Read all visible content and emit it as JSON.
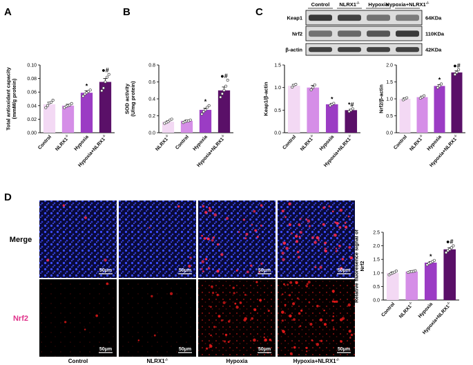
{
  "panel_labels": {
    "a": "A",
    "b": "B",
    "c": "C",
    "d": "D"
  },
  "sig_symbols": {
    "vs_control": "*",
    "vs_nlrx1": "●",
    "vs_hypoxia": "#"
  },
  "colors": {
    "control": "#f3d9f4",
    "nlrx1": "#d58ee7",
    "hypoxia": "#9b3cc4",
    "combo": "#5a1068",
    "nrf2_text": "#e0308a"
  },
  "blot": {
    "lanes": [
      "Control",
      "NLRX1-/-",
      "Hypoxia",
      "Hypoxia+NLRX1-/-"
    ],
    "rows": [
      {
        "name": "Keap1",
        "size": "64KDa"
      },
      {
        "name": "Nrf2",
        "size": "110KDa"
      },
      {
        "name": "β-actin",
        "size": "42KDa"
      }
    ]
  },
  "microscopy": {
    "row_labels": [
      "Merge",
      "Nrf2"
    ],
    "col_labels": [
      "Control",
      "NLRX1-/-",
      "Hypoxia",
      "Hypoxia+NLRX1-/-"
    ],
    "scale_bar": "50μm"
  },
  "chart_data": [
    {
      "id": "A",
      "type": "bar",
      "ylabel": "Total antioxidant capacity\n(mmM/g protein)",
      "ylim": [
        0,
        0.1
      ],
      "yticks": [
        0.0,
        0.02,
        0.04,
        0.06,
        0.08,
        0.1
      ],
      "tick_decimals": 2,
      "categories": [
        "Control",
        "NLRX1-/-",
        "Hypoxia",
        "Hypoxia+NLRX1-/-"
      ],
      "values": [
        0.042,
        0.04,
        0.059,
        0.075
      ],
      "errors": [
        0.003,
        0.002,
        0.003,
        0.005
      ],
      "points": [
        [
          0.037,
          0.04,
          0.044,
          0.045,
          0.048
        ],
        [
          0.037,
          0.039,
          0.04,
          0.041,
          0.043
        ],
        [
          0.054,
          0.057,
          0.059,
          0.061,
          0.063
        ],
        [
          0.062,
          0.066,
          0.075,
          0.082,
          0.086
        ]
      ],
      "annotations": [
        "",
        "",
        "*",
        "●#"
      ],
      "color_keys": [
        "control",
        "nlrx1",
        "hypoxia",
        "combo"
      ]
    },
    {
      "id": "B",
      "type": "bar",
      "ylabel": "SOD activity\n(U/mg protein)",
      "ylim": [
        0,
        0.8
      ],
      "yticks": [
        0.0,
        0.2,
        0.4,
        0.6,
        0.8
      ],
      "tick_decimals": 1,
      "categories": [
        "NLRX1-/-",
        "Control",
        "Hypoxia",
        "Hypoxia+NLRX1-/-"
      ],
      "values": [
        0.13,
        0.14,
        0.27,
        0.5
      ],
      "errors": [
        0.01,
        0.01,
        0.02,
        0.04
      ],
      "points": [
        [
          0.11,
          0.12,
          0.13,
          0.15,
          0.16
        ],
        [
          0.12,
          0.13,
          0.14,
          0.14,
          0.15
        ],
        [
          0.22,
          0.25,
          0.27,
          0.3,
          0.32
        ],
        [
          0.42,
          0.46,
          0.5,
          0.55,
          0.62
        ]
      ],
      "annotations": [
        "",
        "",
        "*",
        "●#"
      ],
      "color_keys": [
        "control",
        "nlrx1",
        "hypoxia",
        "combo"
      ]
    },
    {
      "id": "C1",
      "type": "bar",
      "ylabel": "Keap1/β-actin",
      "ylim": [
        0,
        1.5
      ],
      "yticks": [
        0.0,
        0.5,
        1.0,
        1.5
      ],
      "tick_decimals": 1,
      "categories": [
        "Control",
        "NLRX1-/-",
        "Hypoxia",
        "Hypoxia+NLRX1-/-"
      ],
      "values": [
        1.04,
        1.0,
        0.63,
        0.5
      ],
      "errors": [
        0.03,
        0.05,
        0.02,
        0.02
      ],
      "points": [
        [
          1.01,
          1.05,
          1.07
        ],
        [
          0.95,
          1.0,
          1.06
        ],
        [
          0.6,
          0.63,
          0.65
        ],
        [
          0.47,
          0.5,
          0.53
        ]
      ],
      "annotations": [
        "",
        "",
        "*",
        "*#"
      ],
      "color_keys": [
        "control",
        "nlrx1",
        "hypoxia",
        "combo"
      ]
    },
    {
      "id": "C2",
      "type": "bar",
      "ylabel": "Nrf2/β-actin",
      "ylim": [
        0,
        2.0
      ],
      "yticks": [
        0.0,
        0.5,
        1.0,
        1.5,
        2.0
      ],
      "tick_decimals": 1,
      "categories": [
        "Control",
        "NLRX1-/-",
        "Hypoxia",
        "Hypoxia+NLRX1-/-"
      ],
      "values": [
        1.0,
        1.05,
        1.38,
        1.78
      ],
      "errors": [
        0.03,
        0.03,
        0.04,
        0.05
      ],
      "points": [
        [
          0.97,
          1.0,
          1.03
        ],
        [
          1.02,
          1.05,
          1.09
        ],
        [
          1.33,
          1.38,
          1.44
        ],
        [
          1.72,
          1.78,
          1.86
        ]
      ],
      "annotations": [
        "",
        "",
        "*",
        "●#"
      ],
      "color_keys": [
        "control",
        "nlrx1",
        "hypoxia",
        "combo"
      ]
    },
    {
      "id": "D",
      "type": "bar",
      "ylabel": "Relative fluoresence signal of\nNrf2",
      "ylim": [
        0,
        2.5
      ],
      "yticks": [
        0.0,
        0.5,
        1.0,
        1.5,
        2.0,
        2.5
      ],
      "tick_decimals": 1,
      "categories": [
        "Control",
        "NLRX1-/-",
        "Hypoxia",
        "Hypoxia+NLRX1-/-"
      ],
      "values": [
        1.0,
        1.05,
        1.38,
        1.87
      ],
      "errors": [
        0.04,
        0.03,
        0.04,
        0.06
      ],
      "points": [
        [
          0.93,
          0.97,
          1.0,
          1.03,
          1.07
        ],
        [
          1.02,
          1.04,
          1.05,
          1.06,
          1.08
        ],
        [
          1.3,
          1.35,
          1.38,
          1.42,
          1.46
        ],
        [
          1.75,
          1.82,
          1.87,
          1.93,
          2.0
        ]
      ],
      "annotations": [
        "",
        "",
        "*",
        "●#"
      ],
      "color_keys": [
        "control",
        "nlrx1",
        "hypoxia",
        "combo"
      ]
    }
  ]
}
